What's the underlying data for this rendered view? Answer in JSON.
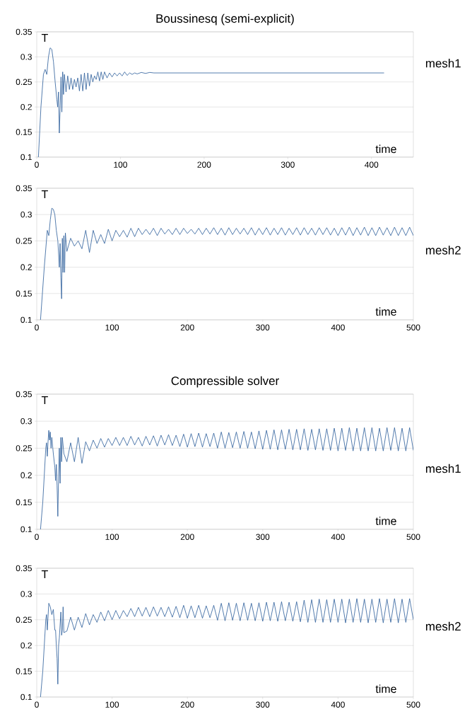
{
  "chart_data": [
    {
      "type": "line",
      "title": "Boussinesq (semi-explicit)",
      "xlabel": "time",
      "ylabel": "T",
      "annotations": [
        "mesh1"
      ],
      "color": "#2a5c99",
      "grid": "y",
      "xlim": [
        0,
        450
      ],
      "xticks": [
        0,
        100,
        200,
        300,
        400
      ],
      "ylim": [
        0.1,
        0.35
      ],
      "yticks": [
        0.1,
        0.15,
        0.2,
        0.25,
        0.3,
        0.35
      ],
      "x": [
        2,
        5,
        8,
        10,
        12,
        14,
        16,
        18,
        20,
        22,
        24,
        25,
        26,
        27,
        28,
        29,
        30,
        31,
        32,
        33,
        35,
        37,
        39,
        41,
        43,
        45,
        47,
        49,
        51,
        53,
        55,
        57,
        59,
        61,
        63,
        65,
        67,
        69,
        71,
        73,
        75,
        77,
        79,
        81,
        84,
        87,
        90,
        93,
        96,
        99,
        102,
        105,
        108,
        111,
        114,
        117,
        120,
        125,
        130,
        135,
        140,
        415
      ],
      "values": [
        0.1,
        0.2,
        0.265,
        0.275,
        0.265,
        0.3,
        0.318,
        0.315,
        0.29,
        0.25,
        0.215,
        0.2,
        0.23,
        0.148,
        0.2,
        0.26,
        0.19,
        0.27,
        0.225,
        0.265,
        0.23,
        0.262,
        0.235,
        0.258,
        0.235,
        0.255,
        0.24,
        0.258,
        0.232,
        0.265,
        0.232,
        0.268,
        0.235,
        0.268,
        0.242,
        0.265,
        0.25,
        0.262,
        0.255,
        0.27,
        0.252,
        0.27,
        0.255,
        0.27,
        0.258,
        0.268,
        0.26,
        0.268,
        0.262,
        0.268,
        0.262,
        0.27,
        0.263,
        0.268,
        0.265,
        0.268,
        0.266,
        0.269,
        0.267,
        0.269,
        0.268,
        0.268
      ]
    },
    {
      "type": "line",
      "xlabel": "time",
      "ylabel": "T",
      "annotations": [
        "mesh2"
      ],
      "color": "#2a5c99",
      "grid": "y",
      "xlim": [
        0,
        500
      ],
      "xticks": [
        0,
        100,
        200,
        300,
        400,
        500
      ],
      "ylim": [
        0.1,
        0.35
      ],
      "yticks": [
        0.1,
        0.15,
        0.2,
        0.25,
        0.3,
        0.35
      ],
      "x": [
        5,
        10,
        14,
        16,
        18,
        20,
        22,
        24,
        26,
        28,
        30,
        31,
        32,
        33,
        34,
        35,
        36,
        37,
        38,
        40,
        45,
        50,
        55,
        60,
        65,
        70,
        75,
        80,
        85,
        90,
        95,
        100,
        105,
        110,
        115,
        120,
        125,
        130,
        135,
        140,
        145,
        150,
        155,
        160,
        165,
        170,
        175,
        180,
        185,
        190,
        195,
        200,
        205,
        210,
        215,
        220,
        225,
        230,
        235,
        240,
        245,
        250,
        255,
        260,
        265,
        270,
        275,
        280,
        285,
        290,
        295,
        300,
        305,
        310,
        315,
        320,
        325,
        330,
        335,
        340,
        345,
        350,
        355,
        360,
        365,
        370,
        375,
        380,
        385,
        390,
        395,
        400,
        405,
        410,
        415,
        420,
        425,
        430,
        435,
        440,
        445,
        450,
        455,
        460,
        465,
        470,
        475,
        480,
        485,
        490,
        495,
        500
      ],
      "values": [
        0.1,
        0.2,
        0.27,
        0.26,
        0.29,
        0.312,
        0.31,
        0.3,
        0.27,
        0.25,
        0.2,
        0.245,
        0.18,
        0.14,
        0.255,
        0.19,
        0.26,
        0.19,
        0.265,
        0.23,
        0.255,
        0.24,
        0.25,
        0.235,
        0.27,
        0.228,
        0.27,
        0.245,
        0.262,
        0.245,
        0.272,
        0.25,
        0.27,
        0.258,
        0.27,
        0.257,
        0.274,
        0.258,
        0.274,
        0.262,
        0.272,
        0.262,
        0.274,
        0.26,
        0.274,
        0.263,
        0.272,
        0.262,
        0.274,
        0.262,
        0.274,
        0.264,
        0.272,
        0.263,
        0.274,
        0.262,
        0.274,
        0.263,
        0.275,
        0.262,
        0.274,
        0.261,
        0.275,
        0.262,
        0.274,
        0.263,
        0.274,
        0.262,
        0.275,
        0.261,
        0.274,
        0.262,
        0.275,
        0.261,
        0.274,
        0.262,
        0.275,
        0.261,
        0.274,
        0.262,
        0.275,
        0.261,
        0.275,
        0.262,
        0.274,
        0.261,
        0.275,
        0.262,
        0.275,
        0.261,
        0.274,
        0.26,
        0.275,
        0.261,
        0.276,
        0.26,
        0.275,
        0.261,
        0.276,
        0.26,
        0.275,
        0.26,
        0.276,
        0.261,
        0.275,
        0.26,
        0.276,
        0.26,
        0.275,
        0.26,
        0.276,
        0.26
      ]
    },
    {
      "type": "line",
      "title": "Compressible solver",
      "xlabel": "time",
      "ylabel": "T",
      "annotations": [
        "mesh1"
      ],
      "color": "#2a5c99",
      "grid": "y",
      "xlim": [
        0,
        500
      ],
      "xticks": [
        0,
        100,
        200,
        300,
        400,
        500
      ],
      "ylim": [
        0.1,
        0.35
      ],
      "yticks": [
        0.1,
        0.15,
        0.2,
        0.25,
        0.3,
        0.35
      ],
      "x": [
        5,
        8,
        10,
        12,
        13,
        14,
        15,
        16,
        17,
        18,
        19,
        20,
        22,
        24,
        25,
        26,
        27,
        28,
        29,
        30,
        31,
        32,
        33,
        34,
        36,
        40,
        45,
        50,
        55,
        60,
        65,
        70,
        75,
        80,
        85,
        90,
        95,
        100,
        105,
        110,
        115,
        120,
        125,
        130,
        135,
        140,
        145,
        150,
        155,
        160,
        165,
        170,
        175,
        180,
        185,
        190,
        195,
        200,
        205,
        210,
        215,
        220,
        225,
        230,
        235,
        240,
        245,
        250,
        255,
        260,
        265,
        270,
        275,
        280,
        285,
        290,
        295,
        300,
        305,
        310,
        315,
        320,
        325,
        330,
        335,
        340,
        345,
        350,
        355,
        360,
        365,
        370,
        375,
        380,
        385,
        390,
        395,
        400,
        405,
        410,
        415,
        420,
        425,
        430,
        435,
        440,
        445,
        450,
        455,
        460,
        465,
        470,
        475,
        480,
        485,
        490,
        495,
        500
      ],
      "values": [
        0.1,
        0.15,
        0.2,
        0.25,
        0.26,
        0.235,
        0.262,
        0.283,
        0.265,
        0.28,
        0.25,
        0.27,
        0.24,
        0.215,
        0.19,
        0.22,
        0.18,
        0.124,
        0.2,
        0.25,
        0.185,
        0.27,
        0.225,
        0.27,
        0.24,
        0.225,
        0.26,
        0.225,
        0.27,
        0.222,
        0.262,
        0.245,
        0.265,
        0.25,
        0.268,
        0.252,
        0.268,
        0.255,
        0.27,
        0.255,
        0.27,
        0.255,
        0.272,
        0.256,
        0.27,
        0.254,
        0.272,
        0.256,
        0.273,
        0.254,
        0.274,
        0.256,
        0.275,
        0.255,
        0.274,
        0.253,
        0.276,
        0.252,
        0.277,
        0.253,
        0.278,
        0.252,
        0.277,
        0.253,
        0.278,
        0.25,
        0.28,
        0.25,
        0.279,
        0.251,
        0.28,
        0.25,
        0.281,
        0.25,
        0.28,
        0.249,
        0.282,
        0.248,
        0.283,
        0.248,
        0.284,
        0.247,
        0.284,
        0.248,
        0.285,
        0.247,
        0.285,
        0.247,
        0.286,
        0.246,
        0.285,
        0.247,
        0.286,
        0.246,
        0.286,
        0.246,
        0.287,
        0.245,
        0.287,
        0.246,
        0.288,
        0.245,
        0.287,
        0.245,
        0.288,
        0.245,
        0.288,
        0.245,
        0.287,
        0.245,
        0.288,
        0.246,
        0.288,
        0.245,
        0.287,
        0.245,
        0.288,
        0.246
      ]
    },
    {
      "type": "line",
      "xlabel": "time",
      "ylabel": "T",
      "annotations": [
        "mesh2"
      ],
      "color": "#2a5c99",
      "grid": "y",
      "xlim": [
        0,
        500
      ],
      "xticks": [
        0,
        100,
        200,
        300,
        400,
        500
      ],
      "ylim": [
        0.1,
        0.35
      ],
      "yticks": [
        0.1,
        0.15,
        0.2,
        0.25,
        0.3,
        0.35
      ],
      "x": [
        5,
        8,
        10,
        12,
        13,
        14,
        16,
        18,
        20,
        22,
        24,
        25,
        26,
        27,
        28,
        29,
        30,
        32,
        33,
        34,
        35,
        36,
        40,
        45,
        50,
        55,
        60,
        65,
        70,
        75,
        80,
        85,
        90,
        95,
        100,
        105,
        110,
        115,
        120,
        125,
        130,
        135,
        140,
        145,
        150,
        155,
        160,
        165,
        170,
        175,
        180,
        185,
        190,
        195,
        200,
        205,
        210,
        215,
        220,
        225,
        230,
        235,
        240,
        245,
        250,
        255,
        260,
        265,
        270,
        275,
        280,
        285,
        290,
        295,
        300,
        305,
        310,
        315,
        320,
        325,
        330,
        335,
        340,
        345,
        350,
        355,
        360,
        365,
        370,
        375,
        380,
        385,
        390,
        395,
        400,
        405,
        410,
        415,
        420,
        425,
        430,
        435,
        440,
        445,
        450,
        455,
        460,
        465,
        470,
        475,
        480,
        485,
        490,
        495,
        500
      ],
      "values": [
        0.1,
        0.15,
        0.2,
        0.25,
        0.26,
        0.23,
        0.282,
        0.275,
        0.26,
        0.27,
        0.23,
        0.23,
        0.2,
        0.175,
        0.125,
        0.2,
        0.215,
        0.265,
        0.22,
        0.23,
        0.275,
        0.225,
        0.228,
        0.255,
        0.23,
        0.255,
        0.235,
        0.262,
        0.24,
        0.26,
        0.245,
        0.265,
        0.248,
        0.268,
        0.25,
        0.268,
        0.252,
        0.268,
        0.256,
        0.272,
        0.256,
        0.274,
        0.257,
        0.274,
        0.256,
        0.275,
        0.257,
        0.274,
        0.256,
        0.275,
        0.255,
        0.276,
        0.254,
        0.278,
        0.253,
        0.277,
        0.254,
        0.278,
        0.253,
        0.277,
        0.254,
        0.278,
        0.249,
        0.282,
        0.248,
        0.283,
        0.249,
        0.282,
        0.248,
        0.283,
        0.249,
        0.282,
        0.248,
        0.283,
        0.247,
        0.284,
        0.248,
        0.284,
        0.247,
        0.285,
        0.248,
        0.284,
        0.247,
        0.285,
        0.246,
        0.288,
        0.245,
        0.289,
        0.245,
        0.29,
        0.245,
        0.289,
        0.245,
        0.29,
        0.245,
        0.29,
        0.244,
        0.29,
        0.245,
        0.291,
        0.245,
        0.29,
        0.244,
        0.29,
        0.245,
        0.291,
        0.244,
        0.29,
        0.245,
        0.291,
        0.244,
        0.29,
        0.245,
        0.291,
        0.25
      ]
    }
  ]
}
